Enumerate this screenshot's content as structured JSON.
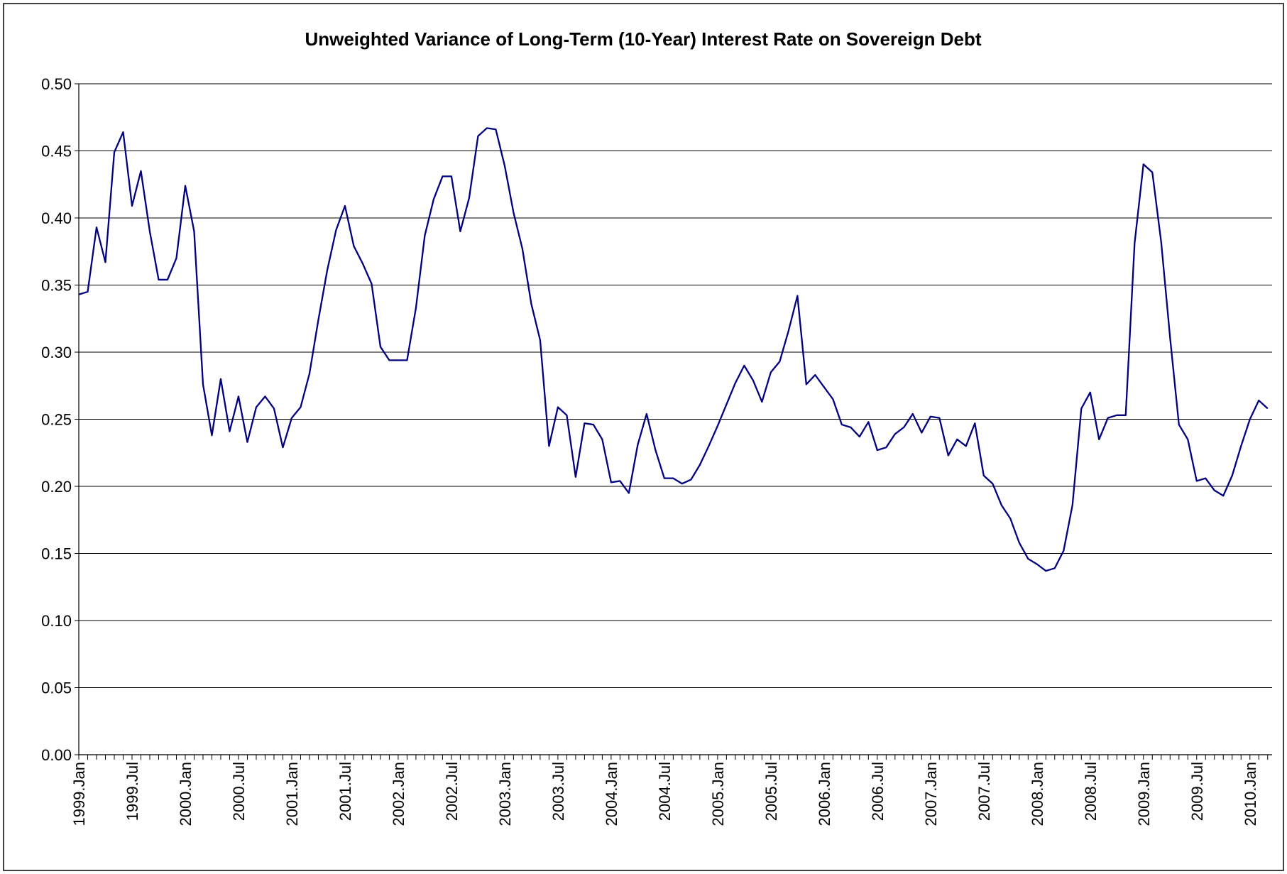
{
  "chart_data": {
    "type": "line",
    "title": "Unweighted Variance of Long-Term (10-Year) Interest Rate on Sovereign Debt",
    "categories": [
      "1999.Jan",
      null,
      null,
      null,
      null,
      null,
      "1999.Jul",
      null,
      null,
      null,
      null,
      null,
      "2000.Jan",
      null,
      null,
      null,
      null,
      null,
      "2000.Jul",
      null,
      null,
      null,
      null,
      null,
      "2001.Jan",
      null,
      null,
      null,
      null,
      null,
      "2001.Jul",
      null,
      null,
      null,
      null,
      null,
      "2002.Jan",
      null,
      null,
      null,
      null,
      null,
      "2002.Jul",
      null,
      null,
      null,
      null,
      null,
      "2003.Jan",
      null,
      null,
      null,
      null,
      null,
      "2003.Jul",
      null,
      null,
      null,
      null,
      null,
      "2004.Jan",
      null,
      null,
      null,
      null,
      null,
      "2004.Jul",
      null,
      null,
      null,
      null,
      null,
      "2005.Jan",
      null,
      null,
      null,
      null,
      null,
      "2005.Jul",
      null,
      null,
      null,
      null,
      null,
      "2006.Jan",
      null,
      null,
      null,
      null,
      null,
      "2006.Jul",
      null,
      null,
      null,
      null,
      null,
      "2007.Jan",
      null,
      null,
      null,
      null,
      null,
      "2007.Jul",
      null,
      null,
      null,
      null,
      null,
      "2008.Jan",
      null,
      null,
      null,
      null,
      null,
      "2008.Jul",
      null,
      null,
      null,
      null,
      null,
      "2009.Jan",
      null,
      null,
      null,
      null,
      null,
      "2009.Jul",
      null,
      null,
      null,
      null,
      null,
      "2010.Jan",
      null,
      null
    ],
    "series": [
      {
        "color": "#000080",
        "values": [
          0.343,
          0.345,
          0.393,
          0.367,
          0.449,
          0.464,
          0.409,
          0.435,
          0.39,
          0.354,
          0.354,
          0.37,
          0.424,
          0.39,
          0.276,
          0.238,
          0.28,
          0.241,
          0.267,
          0.233,
          0.259,
          0.267,
          0.258,
          0.229,
          0.251,
          0.259,
          0.284,
          0.324,
          0.361,
          0.391,
          0.409,
          0.379,
          0.366,
          0.351,
          0.304,
          0.294,
          0.294,
          0.294,
          0.333,
          0.387,
          0.414,
          0.431,
          0.431,
          0.39,
          0.415,
          0.461,
          0.467,
          0.466,
          0.439,
          0.404,
          0.377,
          0.336,
          0.309,
          0.23,
          0.259,
          0.253,
          0.207,
          0.247,
          0.246,
          0.235,
          0.203,
          0.204,
          0.195,
          0.231,
          0.254,
          0.227,
          0.206,
          0.206,
          0.202,
          0.205,
          0.216,
          0.23,
          0.245,
          0.261,
          0.277,
          0.29,
          0.279,
          0.263,
          0.285,
          0.293,
          0.316,
          0.342,
          0.276,
          0.283,
          0.274,
          0.265,
          0.246,
          0.244,
          0.237,
          0.248,
          0.227,
          0.229,
          0.239,
          0.244,
          0.254,
          0.24,
          0.252,
          0.251,
          0.223,
          0.235,
          0.23,
          0.247,
          0.208,
          0.202,
          0.186,
          0.176,
          0.158,
          0.146,
          0.142,
          0.137,
          0.139,
          0.152,
          0.186,
          0.258,
          0.27,
          0.235,
          0.251,
          0.253,
          0.253,
          0.381,
          0.44,
          0.434,
          0.382,
          0.311,
          0.246,
          0.235,
          0.204,
          0.206,
          0.197,
          0.193,
          0.208,
          0.23,
          0.25,
          0.264,
          0.258
        ]
      }
    ],
    "ylim": [
      0,
      0.5
    ],
    "yticks": [
      {
        "value": 0,
        "label": "0.00"
      },
      {
        "value": 0.05,
        "label": "0.05"
      },
      {
        "value": 0.1,
        "label": "0.10"
      },
      {
        "value": 0.15,
        "label": "0.15"
      },
      {
        "value": 0.2,
        "label": "0.20"
      },
      {
        "value": 0.25,
        "label": "0.25"
      },
      {
        "value": 0.3,
        "label": "0.30"
      },
      {
        "value": 0.35,
        "label": "0.35"
      },
      {
        "value": 0.4,
        "label": "0.40"
      },
      {
        "value": 0.45,
        "label": "0.45"
      },
      {
        "value": 0.5,
        "label": "0.50"
      }
    ],
    "grid": true
  }
}
